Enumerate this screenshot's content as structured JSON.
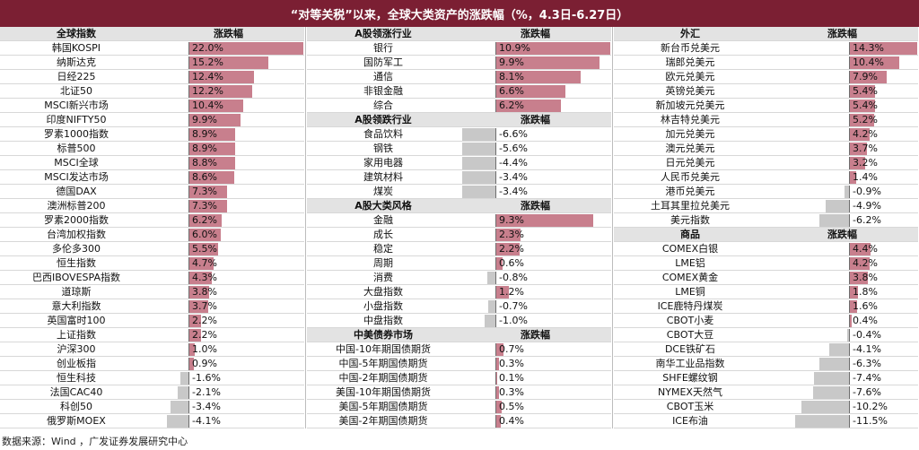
{
  "title": "“对等关税”以来，全球大类资产的涨跌幅（%，4.3日-6.27日）",
  "source": "数据来源：Wind ，广发证券发展研究中心",
  "colors": {
    "banner": "#7b1f33",
    "positive": "#c87f8d",
    "negative": "#c8c8c8"
  },
  "chart_data": {
    "type": "table",
    "panels": [
      {
        "sections": [
          {
            "header": "全球指数",
            "value_header": "涨跌幅",
            "rows": [
              {
                "label": "韩国KOSPI",
                "value": 22.0
              },
              {
                "label": "纳斯达克",
                "value": 15.2
              },
              {
                "label": "日经225",
                "value": 12.4
              },
              {
                "label": "北证50",
                "value": 12.2
              },
              {
                "label": "MSCI新兴市场",
                "value": 10.4
              },
              {
                "label": "印度NIFTY50",
                "value": 9.9
              },
              {
                "label": "罗素1000指数",
                "value": 8.9
              },
              {
                "label": "标普500",
                "value": 8.9
              },
              {
                "label": "MSCI全球",
                "value": 8.8
              },
              {
                "label": "MSCI发达市场",
                "value": 8.6
              },
              {
                "label": "德国DAX",
                "value": 7.3
              },
              {
                "label": "澳洲标普200",
                "value": 7.3
              },
              {
                "label": "罗素2000指数",
                "value": 6.2
              },
              {
                "label": "台湾加权指数",
                "value": 6.0
              },
              {
                "label": "多伦多300",
                "value": 5.5
              },
              {
                "label": "恒生指数",
                "value": 4.7
              },
              {
                "label": "巴西IBOVESPA指数",
                "value": 4.3
              },
              {
                "label": "道琼斯",
                "value": 3.8
              },
              {
                "label": "意大利指数",
                "value": 3.7
              },
              {
                "label": "英国富时100",
                "value": 2.2
              },
              {
                "label": "上证指数",
                "value": 2.2
              },
              {
                "label": "沪深300",
                "value": 1.0
              },
              {
                "label": "创业板指",
                "value": 0.9
              },
              {
                "label": "恒生科技",
                "value": -1.6
              },
              {
                "label": "法国CAC40",
                "value": -2.1
              },
              {
                "label": "科创50",
                "value": -3.4
              },
              {
                "label": "俄罗斯MOEX",
                "value": -4.1
              }
            ]
          }
        ]
      },
      {
        "sections": [
          {
            "header": "A股领涨行业",
            "value_header": "涨跌幅",
            "rows": [
              {
                "label": "银行",
                "value": 10.9
              },
              {
                "label": "国防军工",
                "value": 9.9
              },
              {
                "label": "通信",
                "value": 8.1
              },
              {
                "label": "非银金融",
                "value": 6.6
              },
              {
                "label": "综合",
                "value": 6.2
              }
            ]
          },
          {
            "header": "A股领跌行业",
            "value_header": "涨跌幅",
            "rows": [
              {
                "label": "食品饮料",
                "value": -6.6
              },
              {
                "label": "钢铁",
                "value": -5.6
              },
              {
                "label": "家用电器",
                "value": -4.4
              },
              {
                "label": "建筑材料",
                "value": -3.4
              },
              {
                "label": "煤炭",
                "value": -3.4
              }
            ]
          },
          {
            "header": "A股大类风格",
            "value_header": "涨跌幅",
            "rows": [
              {
                "label": "金融",
                "value": 9.3
              },
              {
                "label": "成长",
                "value": 2.3
              },
              {
                "label": "稳定",
                "value": 2.2
              },
              {
                "label": "周期",
                "value": 0.6
              },
              {
                "label": "消费",
                "value": -0.8
              },
              {
                "label": "大盘指数",
                "value": 1.2
              },
              {
                "label": "小盘指数",
                "value": -0.7
              },
              {
                "label": "中盘指数",
                "value": -1.0
              }
            ]
          },
          {
            "header": "中美债券市场",
            "value_header": "涨跌幅",
            "rows": [
              {
                "label": "中国-10年期国债期货",
                "value": 0.7
              },
              {
                "label": "中国-5年期国债期货",
                "value": 0.3
              },
              {
                "label": "中国-2年期国债期货",
                "value": 0.1
              },
              {
                "label": "美国-10年期国债期货",
                "value": 0.3
              },
              {
                "label": "美国-5年期国债期货",
                "value": 0.5
              },
              {
                "label": "美国-2年期国债期货",
                "value": 0.4
              }
            ]
          }
        ]
      },
      {
        "sections": [
          {
            "header": "外汇",
            "value_header": "涨跌幅",
            "rows": [
              {
                "label": "新台币兑美元",
                "value": 14.3
              },
              {
                "label": "瑞郎兑美元",
                "value": 10.4
              },
              {
                "label": "欧元兑美元",
                "value": 7.9
              },
              {
                "label": "英镑兑美元",
                "value": 5.4
              },
              {
                "label": "新加坡元兑美元",
                "value": 5.4
              },
              {
                "label": "林吉特兑美元",
                "value": 5.2
              },
              {
                "label": "加元兑美元",
                "value": 4.2
              },
              {
                "label": "澳元兑美元",
                "value": 3.7
              },
              {
                "label": "日元兑美元",
                "value": 3.2
              },
              {
                "label": "人民币兑美元",
                "value": 1.4
              },
              {
                "label": "港币兑美元",
                "value": -0.9
              },
              {
                "label": "土耳其里拉兑美元",
                "value": -4.9
              },
              {
                "label": "美元指数",
                "value": -6.2
              }
            ]
          },
          {
            "header": "商品",
            "value_header": "涨跌幅",
            "rows": [
              {
                "label": "COMEX白银",
                "value": 4.4
              },
              {
                "label": "LME铝",
                "value": 4.2
              },
              {
                "label": "COMEX黄金",
                "value": 3.8
              },
              {
                "label": "LME铜",
                "value": 1.8
              },
              {
                "label": "ICE鹿特丹煤炭",
                "value": 1.6
              },
              {
                "label": "CBOT小麦",
                "value": 0.4
              },
              {
                "label": "CBOT大豆",
                "value": -0.4
              },
              {
                "label": "DCE铁矿石",
                "value": -4.1
              },
              {
                "label": "南华工业品指数",
                "value": -6.3
              },
              {
                "label": "SHFE螺纹钢",
                "value": -7.4
              },
              {
                "label": "NYMEX天然气",
                "value": -7.6
              },
              {
                "label": "CBOT玉米",
                "value": -10.2
              },
              {
                "label": "ICE布油",
                "value": -11.5
              }
            ]
          }
        ]
      }
    ]
  }
}
